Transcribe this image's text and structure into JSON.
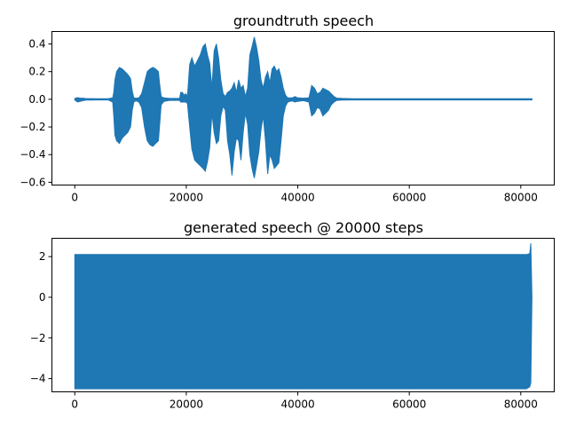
{
  "colors": {
    "series": "#1f77b4"
  },
  "chart_data": [
    {
      "type": "line",
      "title": "groundtruth speech",
      "xlabel": "",
      "ylabel": "",
      "xlim": [
        -4100,
        86000
      ],
      "ylim": [
        -0.62,
        0.49
      ],
      "xticks": [
        0,
        20000,
        40000,
        60000,
        80000
      ],
      "xtick_labels": [
        "0",
        "20000",
        "40000",
        "60000",
        "80000"
      ],
      "yticks": [
        -0.6,
        -0.4,
        -0.2,
        0.0,
        0.2,
        0.4
      ],
      "ytick_labels": [
        "−0.6",
        "−0.4",
        "−0.2",
        "0.0",
        "0.2",
        "0.4"
      ],
      "grid": false,
      "series": [
        {
          "x": [
            0,
            500,
            1000,
            1500,
            2000,
            3000,
            4000,
            5000,
            6000,
            6800,
            7000,
            7200,
            7500,
            8000,
            8500,
            9000,
            9500,
            10000,
            10300,
            10600,
            11000,
            11500,
            12000,
            12500,
            13000,
            13500,
            14000,
            14500,
            15000,
            15200,
            15500,
            16000,
            17000,
            18000,
            18800,
            19000,
            19300,
            19600,
            19900,
            20200,
            20600,
            21000,
            21500,
            22000,
            22500,
            23000,
            23400,
            23800,
            24200,
            24600,
            25000,
            25400,
            25800,
            26200,
            26600,
            27000,
            27400,
            27800,
            28200,
            28600,
            29000,
            29400,
            29800,
            30200,
            30600,
            31000,
            31400,
            31800,
            32200,
            32600,
            33000,
            33400,
            33800,
            34200,
            34600,
            35000,
            35400,
            35800,
            36200,
            36600,
            37000,
            37400,
            37800,
            38200,
            38600,
            39000,
            39500,
            40000,
            41000,
            42000,
            42500,
            43000,
            43500,
            44000,
            44500,
            45000,
            45500,
            46000,
            46500,
            47000,
            48000,
            50000,
            60000,
            70000,
            82000
          ],
          "upper": [
            0.006,
            0.012,
            0.008,
            0.008,
            0.005,
            0.005,
            0.004,
            0.004,
            0.004,
            0.01,
            0.05,
            0.14,
            0.2,
            0.23,
            0.22,
            0.2,
            0.18,
            0.15,
            0.06,
            0.01,
            0.008,
            0.01,
            0.04,
            0.12,
            0.2,
            0.22,
            0.23,
            0.22,
            0.2,
            0.12,
            0.02,
            0.01,
            0.006,
            0.006,
            0.006,
            0.05,
            0.05,
            0.03,
            0.04,
            0.02,
            0.25,
            0.3,
            0.24,
            0.28,
            0.32,
            0.38,
            0.4,
            0.32,
            0.26,
            0.08,
            0.35,
            0.4,
            0.3,
            0.14,
            0.04,
            0.02,
            0.05,
            0.06,
            0.08,
            0.12,
            0.05,
            0.14,
            0.08,
            0.1,
            0.02,
            0.08,
            0.32,
            0.38,
            0.45,
            0.38,
            0.28,
            0.14,
            0.08,
            0.16,
            0.2,
            0.12,
            0.22,
            0.24,
            0.2,
            0.22,
            0.16,
            0.08,
            0.03,
            0.01,
            0.01,
            0.01,
            0.02,
            0.01,
            0.008,
            0.01,
            0.1,
            0.08,
            0.04,
            0.05,
            0.08,
            0.07,
            0.06,
            0.04,
            0.02,
            0.008,
            0.006,
            0.004,
            0.004,
            0.004,
            0.004
          ],
          "lower": [
            -0.006,
            -0.02,
            -0.015,
            -0.01,
            -0.006,
            -0.006,
            -0.005,
            -0.005,
            -0.005,
            -0.02,
            -0.12,
            -0.26,
            -0.3,
            -0.32,
            -0.28,
            -0.26,
            -0.24,
            -0.2,
            -0.08,
            -0.02,
            -0.01,
            -0.02,
            -0.06,
            -0.2,
            -0.3,
            -0.33,
            -0.34,
            -0.32,
            -0.3,
            -0.2,
            -0.04,
            -0.015,
            -0.008,
            -0.008,
            -0.008,
            -0.02,
            -0.02,
            -0.02,
            -0.02,
            -0.03,
            -0.2,
            -0.36,
            -0.44,
            -0.46,
            -0.48,
            -0.5,
            -0.52,
            -0.45,
            -0.35,
            -0.1,
            -0.24,
            -0.32,
            -0.3,
            -0.12,
            -0.05,
            -0.08,
            -0.3,
            -0.4,
            -0.55,
            -0.38,
            -0.28,
            -0.3,
            -0.44,
            -0.24,
            -0.1,
            -0.18,
            -0.4,
            -0.5,
            -0.57,
            -0.48,
            -0.38,
            -0.22,
            -0.12,
            -0.3,
            -0.54,
            -0.4,
            -0.44,
            -0.5,
            -0.48,
            -0.46,
            -0.3,
            -0.12,
            -0.05,
            -0.02,
            -0.015,
            -0.012,
            -0.02,
            -0.015,
            -0.01,
            -0.02,
            -0.12,
            -0.1,
            -0.06,
            -0.07,
            -0.12,
            -0.1,
            -0.08,
            -0.04,
            -0.02,
            -0.008,
            -0.006,
            -0.005,
            -0.005,
            -0.005,
            -0.005
          ]
        }
      ]
    },
    {
      "type": "line",
      "title": "generated speech @ 20000 steps",
      "xlabel": "",
      "ylabel": "",
      "xlim": [
        -4100,
        86000
      ],
      "ylim": [
        -4.65,
        2.9
      ],
      "xticks": [
        0,
        20000,
        40000,
        60000,
        80000
      ],
      "xtick_labels": [
        "0",
        "20000",
        "40000",
        "60000",
        "80000"
      ],
      "yticks": [
        -4,
        -2,
        0,
        2
      ],
      "ytick_labels": [
        "−4",
        "−2",
        "0",
        "2"
      ],
      "grid": false,
      "series": [
        {
          "x": [
            0,
            81000,
            81600,
            81800,
            82000
          ],
          "upper": [
            2.1,
            2.1,
            2.15,
            2.65,
            0.0
          ],
          "lower": [
            -4.5,
            -4.5,
            -4.4,
            -4.2,
            0.0
          ]
        }
      ]
    }
  ]
}
